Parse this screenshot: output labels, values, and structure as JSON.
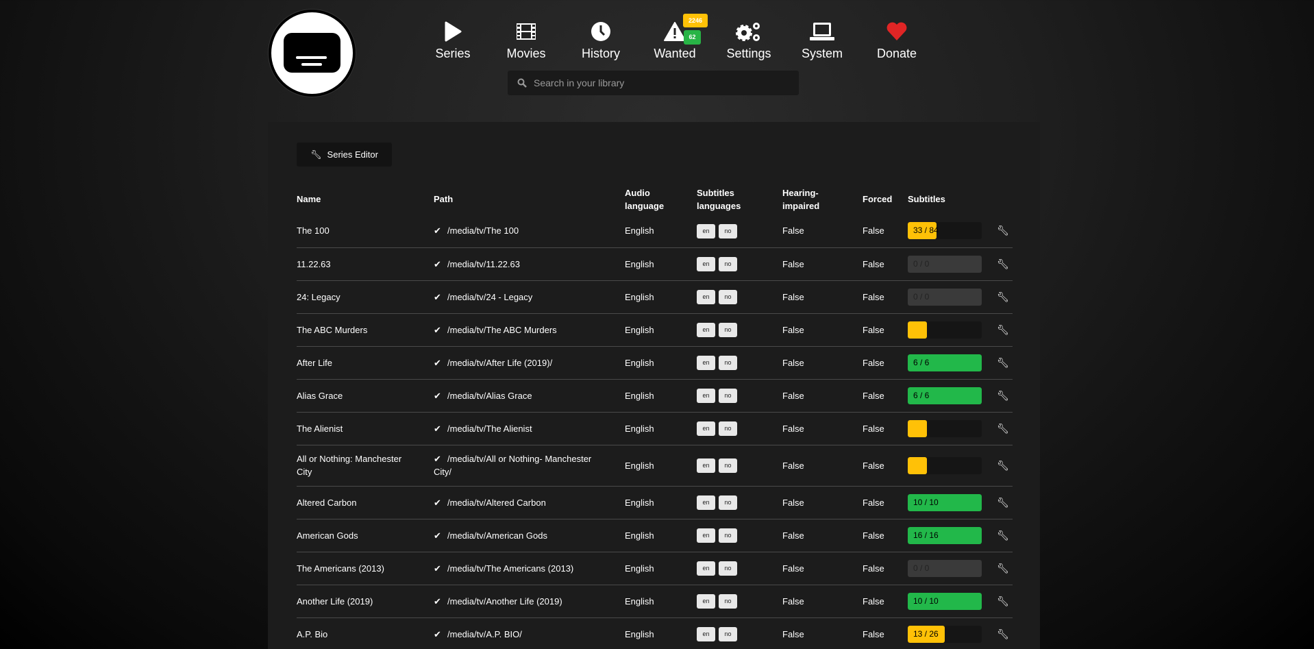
{
  "nav": [
    {
      "label": "Series",
      "icon": "play-icon"
    },
    {
      "label": "Movies",
      "icon": "film-icon"
    },
    {
      "label": "History",
      "icon": "clock-icon"
    },
    {
      "label": "Wanted",
      "icon": "warning-icon",
      "badges": [
        {
          "value": "2246",
          "color": "#ffc107"
        },
        {
          "value": "62",
          "color": "#28b446"
        }
      ]
    },
    {
      "label": "Settings",
      "icon": "gears-icon"
    },
    {
      "label": "System",
      "icon": "laptop-icon"
    },
    {
      "label": "Donate",
      "icon": "heart-icon",
      "color": "#e02525"
    }
  ],
  "search": {
    "placeholder": "Search in your library"
  },
  "editor_button": "Series Editor",
  "columns": [
    "Name",
    "Path",
    "Audio language",
    "Subtitles languages",
    "Hearing-impaired",
    "Forced",
    "Subtitles"
  ],
  "colors": {
    "partial": "#ffc107",
    "complete": "#22b84a",
    "empty": "#3a3a3a"
  },
  "rows": [
    {
      "name": "The 100",
      "path": "/media/tv/The 100",
      "audio": "English",
      "langs": [
        "en",
        "no"
      ],
      "hi": "False",
      "forced": "False",
      "subs": "33 / 84",
      "progress": 0.39,
      "status": "partial"
    },
    {
      "name": "11.22.63",
      "path": "/media/tv/11.22.63",
      "audio": "English",
      "langs": [
        "en",
        "no"
      ],
      "hi": "False",
      "forced": "False",
      "subs": "0 / 0",
      "progress": 0,
      "status": "empty"
    },
    {
      "name": "24: Legacy",
      "path": "/media/tv/24 - Legacy",
      "audio": "English",
      "langs": [
        "en",
        "no"
      ],
      "hi": "False",
      "forced": "False",
      "subs": "0 / 0",
      "progress": 0,
      "status": "empty"
    },
    {
      "name": "The ABC Murders",
      "path": "/media/tv/The ABC Murders",
      "audio": "English",
      "langs": [
        "en",
        "no"
      ],
      "hi": "False",
      "forced": "False",
      "subs": "",
      "progress": 0.26,
      "status": "partial"
    },
    {
      "name": "After Life",
      "path": "/media/tv/After Life (2019)/",
      "audio": "English",
      "langs": [
        "en",
        "no"
      ],
      "hi": "False",
      "forced": "False",
      "subs": "6 / 6",
      "progress": 1,
      "status": "complete"
    },
    {
      "name": "Alias Grace",
      "path": "/media/tv/Alias Grace",
      "audio": "English",
      "langs": [
        "en",
        "no"
      ],
      "hi": "False",
      "forced": "False",
      "subs": "6 / 6",
      "progress": 1,
      "status": "complete"
    },
    {
      "name": "The Alienist",
      "path": "/media/tv/The Alienist",
      "audio": "English",
      "langs": [
        "en",
        "no"
      ],
      "hi": "False",
      "forced": "False",
      "subs": "",
      "progress": 0.26,
      "status": "partial"
    },
    {
      "name": "All or Nothing: Manchester City",
      "path": "/media/tv/All or Nothing- Manchester City/",
      "audio": "English",
      "langs": [
        "en",
        "no"
      ],
      "hi": "False",
      "forced": "False",
      "subs": "",
      "progress": 0.26,
      "status": "partial"
    },
    {
      "name": "Altered Carbon",
      "path": "/media/tv/Altered Carbon",
      "audio": "English",
      "langs": [
        "en",
        "no"
      ],
      "hi": "False",
      "forced": "False",
      "subs": "10 / 10",
      "progress": 1,
      "status": "complete"
    },
    {
      "name": "American Gods",
      "path": "/media/tv/American Gods",
      "audio": "English",
      "langs": [
        "en",
        "no"
      ],
      "hi": "False",
      "forced": "False",
      "subs": "16 / 16",
      "progress": 1,
      "status": "complete"
    },
    {
      "name": "The Americans (2013)",
      "path": "/media/tv/The Americans (2013)",
      "audio": "English",
      "langs": [
        "en",
        "no"
      ],
      "hi": "False",
      "forced": "False",
      "subs": "0 / 0",
      "progress": 0,
      "status": "empty"
    },
    {
      "name": "Another Life (2019)",
      "path": "/media/tv/Another Life (2019)",
      "audio": "English",
      "langs": [
        "en",
        "no"
      ],
      "hi": "False",
      "forced": "False",
      "subs": "10 / 10",
      "progress": 1,
      "status": "complete"
    },
    {
      "name": "A.P. Bio",
      "path": "/media/tv/A.P. BIO/",
      "audio": "English",
      "langs": [
        "en",
        "no"
      ],
      "hi": "False",
      "forced": "False",
      "subs": "13 / 26",
      "progress": 0.5,
      "status": "partial"
    }
  ]
}
